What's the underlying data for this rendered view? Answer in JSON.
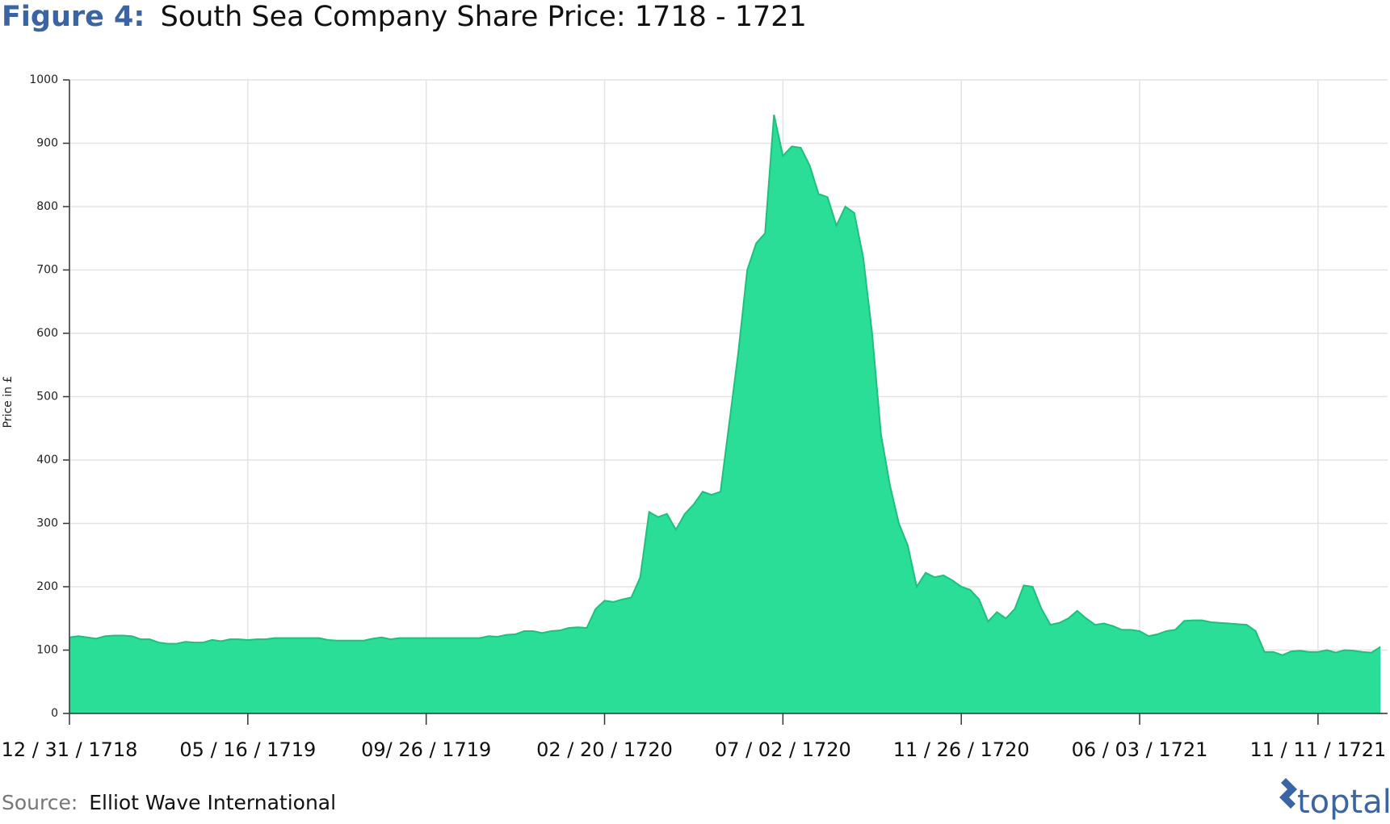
{
  "chart_data": {
    "type": "area",
    "title_label": "Figure 4:",
    "title": "South Sea Company Share Price: 1718 - 1721",
    "y_label": "Price in £",
    "source_label": "Source:",
    "source": "Elliot Wave International",
    "brand": "toptal",
    "color": "#2ade98",
    "line_color": "#1fbf7d",
    "grid": true,
    "ylim": [
      0,
      1000
    ],
    "yticks": [
      0,
      100,
      200,
      300,
      400,
      500,
      600,
      700,
      800,
      900,
      1000
    ],
    "categories": [
      "12 / 31 / 1718",
      null,
      null,
      null,
      null,
      null,
      null,
      null,
      null,
      null,
      null,
      null,
      null,
      null,
      null,
      null,
      null,
      null,
      null,
      null,
      "05 / 16 / 1719",
      null,
      null,
      null,
      null,
      null,
      null,
      null,
      null,
      null,
      null,
      null,
      null,
      null,
      null,
      null,
      null,
      null,
      null,
      null,
      "09/ 26 / 1719",
      null,
      null,
      null,
      null,
      null,
      null,
      null,
      null,
      null,
      null,
      null,
      null,
      null,
      null,
      null,
      null,
      null,
      null,
      null,
      "02 / 20 / 1720",
      null,
      null,
      null,
      null,
      null,
      null,
      null,
      null,
      null,
      null,
      null,
      null,
      null,
      null,
      null,
      null,
      null,
      null,
      null,
      "07 / 02 / 1720",
      null,
      null,
      null,
      null,
      null,
      null,
      null,
      null,
      null,
      null,
      null,
      null,
      null,
      null,
      null,
      null,
      null,
      null,
      null,
      "11 / 26 / 1720",
      null,
      null,
      null,
      null,
      null,
      null,
      null,
      null,
      null,
      null,
      null,
      null,
      null,
      null,
      null,
      null,
      null,
      null,
      null,
      "06 / 03 / 1721",
      null,
      null,
      null,
      null,
      null,
      null,
      null,
      null,
      null,
      null,
      null,
      null,
      null,
      null,
      null,
      null,
      null,
      null,
      null,
      "11 / 11 / 1721",
      null,
      null,
      null,
      null,
      null,
      null,
      null
    ],
    "values": [
      120,
      122,
      120,
      118,
      122,
      123,
      123,
      122,
      117,
      117,
      112,
      110,
      110,
      113,
      112,
      112,
      116,
      114,
      117,
      117,
      116,
      117,
      117,
      119,
      119,
      119,
      119,
      119,
      119,
      116,
      115,
      115,
      115,
      115,
      118,
      120,
      117,
      119,
      119,
      119,
      119,
      119,
      119,
      119,
      119,
      119,
      119,
      122,
      121,
      124,
      125,
      130,
      130,
      127,
      130,
      131,
      135,
      136,
      135,
      165,
      178,
      176,
      180,
      183,
      215,
      318,
      310,
      315,
      290,
      315,
      330,
      350,
      345,
      350,
      460,
      570,
      700,
      742,
      758,
      945,
      880,
      895,
      893,
      865,
      820,
      815,
      770,
      800,
      790,
      720,
      600,
      440,
      360,
      300,
      265,
      200,
      222,
      215,
      218,
      210,
      200,
      195,
      180,
      145,
      160,
      150,
      165,
      202,
      200,
      165,
      140,
      143,
      150,
      162,
      150,
      140,
      142,
      138,
      132,
      132,
      130,
      122,
      125,
      130,
      132,
      146,
      147,
      147,
      144,
      143,
      142,
      141,
      140,
      130,
      97,
      97,
      92,
      98,
      99,
      97,
      97,
      100,
      96,
      100,
      99,
      97,
      96,
      105
    ]
  }
}
